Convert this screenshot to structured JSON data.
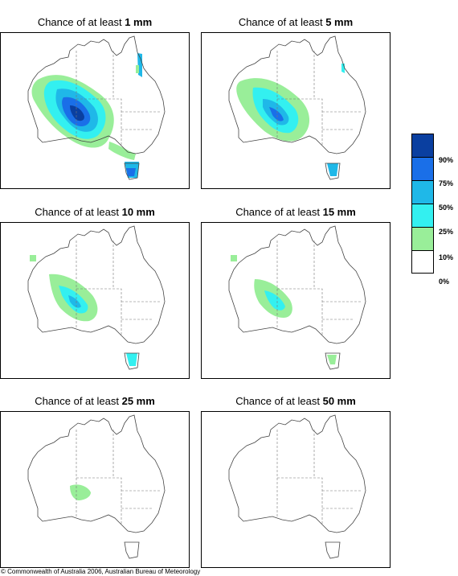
{
  "panels": [
    {
      "prefix": "Chance of at least ",
      "amount": "1 mm"
    },
    {
      "prefix": "Chance of at least ",
      "amount": "5 mm"
    },
    {
      "prefix": "Chance of at least ",
      "amount": "10 mm"
    },
    {
      "prefix": "Chance of at least ",
      "amount": "15 mm"
    },
    {
      "prefix": "Chance of at least ",
      "amount": "25 mm"
    },
    {
      "prefix": "Chance of at least ",
      "amount": "50 mm"
    }
  ],
  "legend": {
    "labels": [
      "90%",
      "75%",
      "50%",
      "25%",
      "10%",
      "0%"
    ],
    "colors": [
      "#0a3fa0",
      "#1a6fe8",
      "#1fb8e8",
      "#33f0f0",
      "#99ee99",
      "#ffffff"
    ]
  },
  "copyright": "© Commonwealth of Australia 2006, Australian Bureau of Meteorology"
}
